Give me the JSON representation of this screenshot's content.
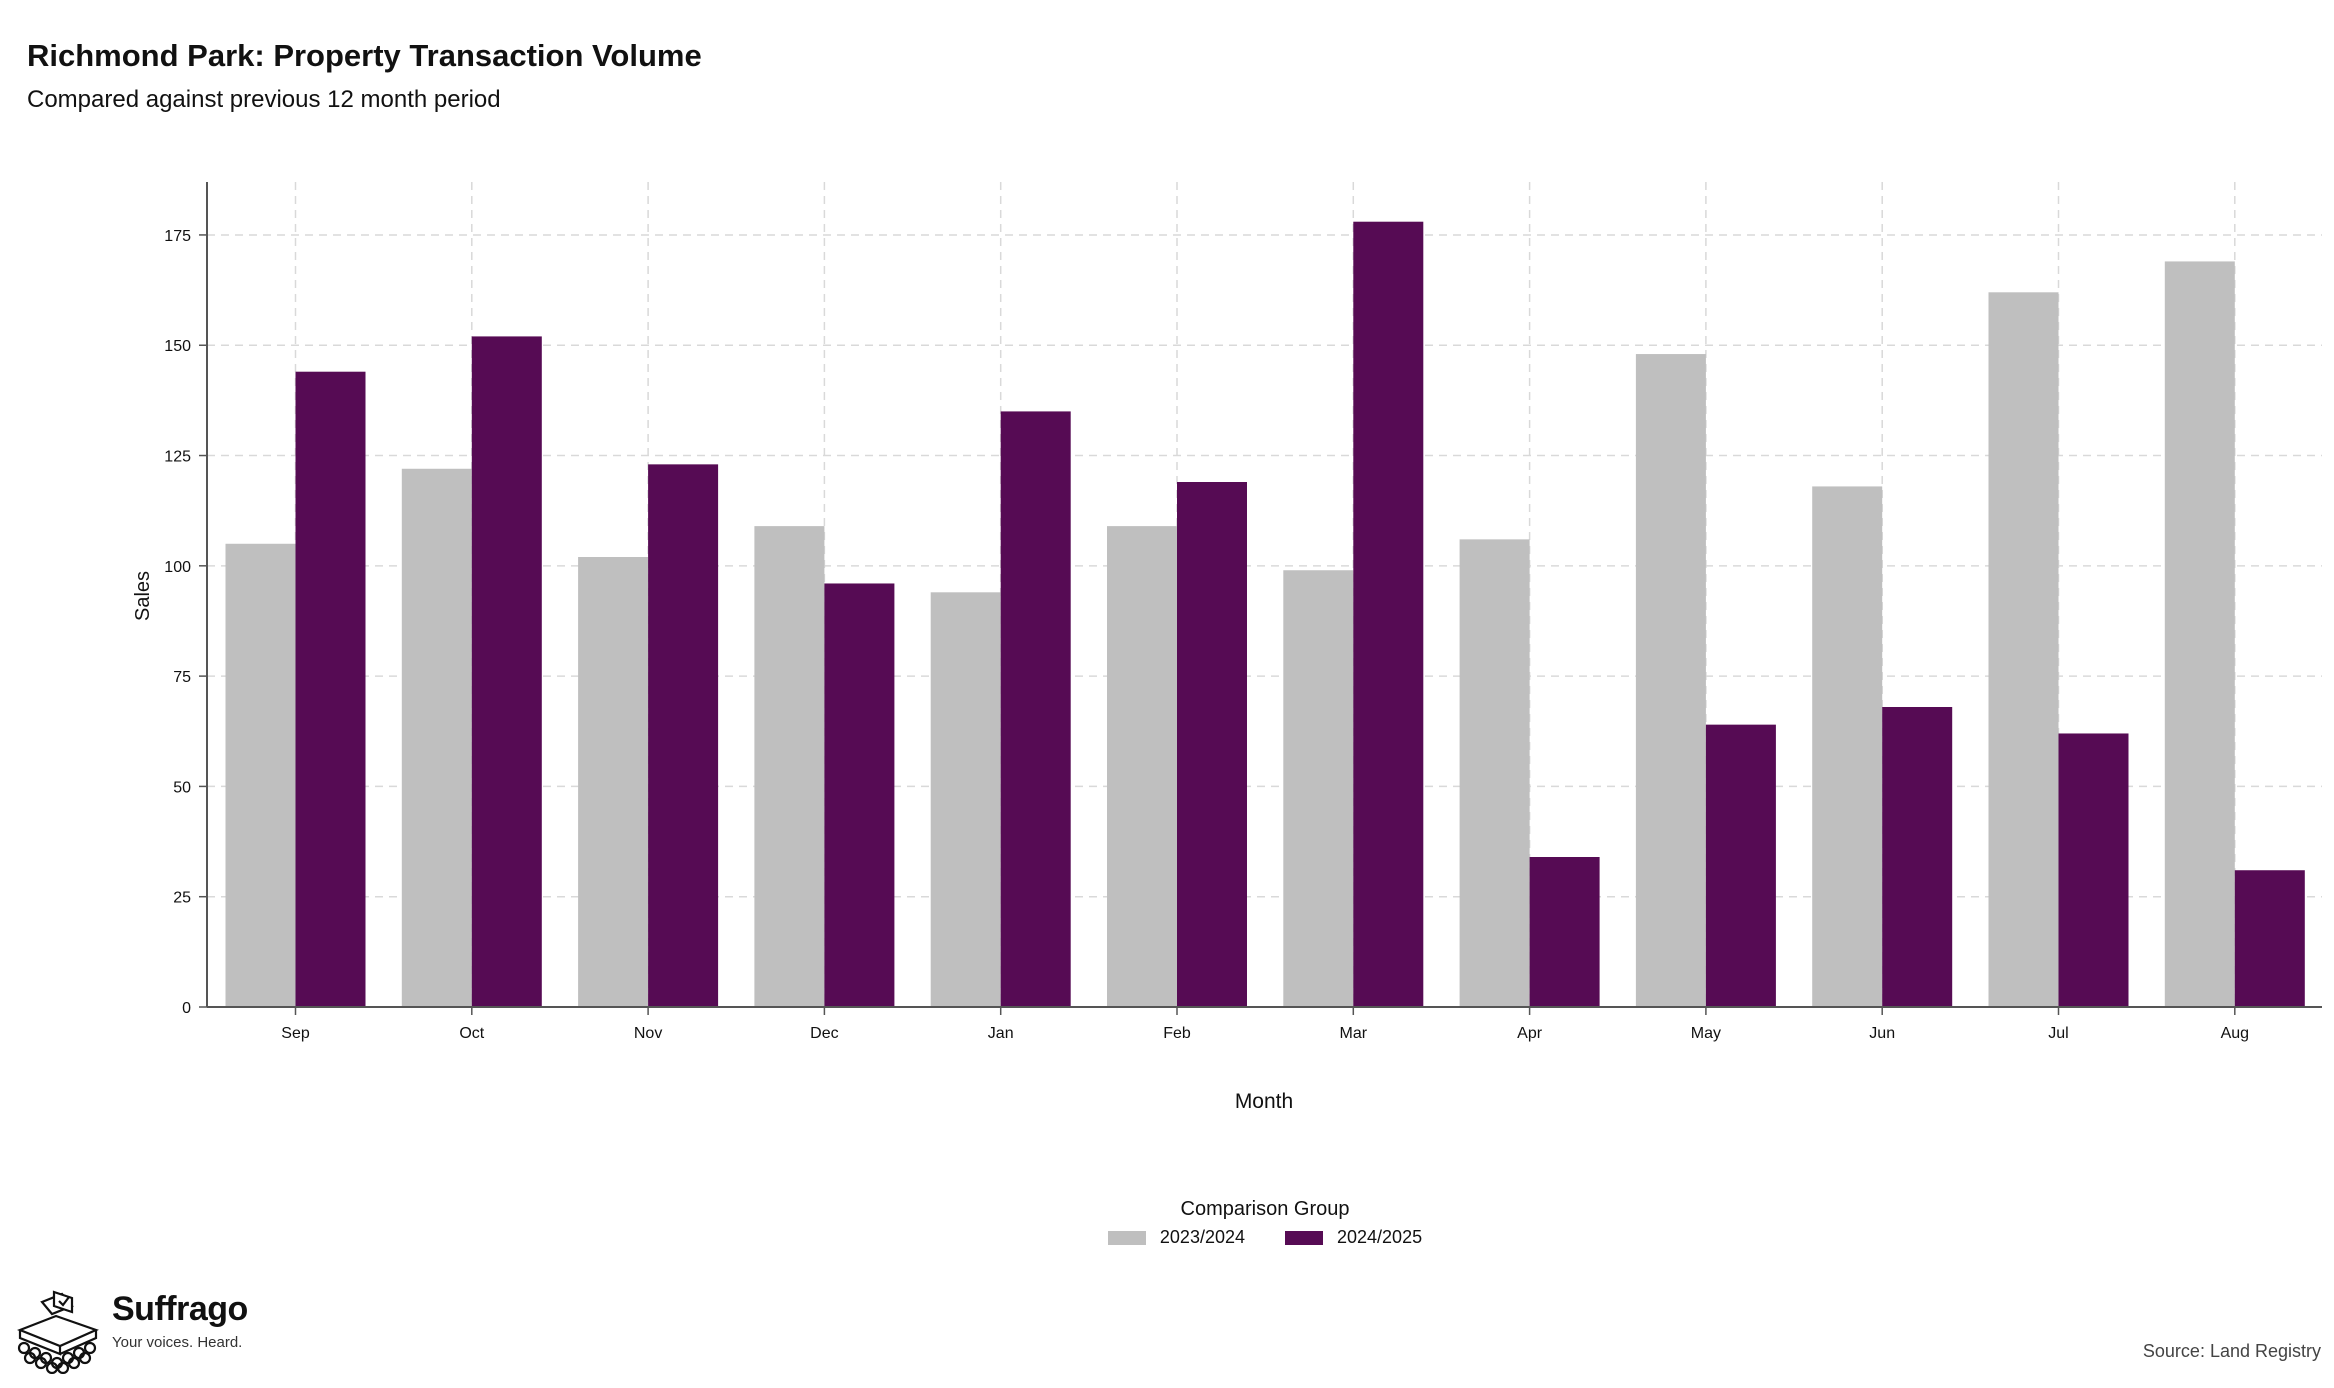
{
  "header": {
    "title": "Richmond Park: Property Transaction Volume",
    "subtitle": "Compared against previous 12 month period"
  },
  "colors": {
    "series_2023_2024": "#bfbfbf",
    "series_2024_2025": "#560b54",
    "grid": "#d9d9d9",
    "axis": "#555555"
  },
  "chart_data": {
    "type": "bar",
    "xlabel": "Month",
    "ylabel": "Sales",
    "ylim": [
      0,
      187
    ],
    "yticks": [
      0,
      25,
      50,
      75,
      100,
      125,
      150,
      175
    ],
    "grid": true,
    "legend_position": "bottom",
    "legend_title": "Comparison Group",
    "categories": [
      "Sep",
      "Oct",
      "Nov",
      "Dec",
      "Jan",
      "Feb",
      "Mar",
      "Apr",
      "May",
      "Jun",
      "Jul",
      "Aug"
    ],
    "series": [
      {
        "name": "2023/2024",
        "values": [
          105,
          122,
          102,
          109,
          94,
          109,
          99,
          106,
          148,
          118,
          162,
          169
        ]
      },
      {
        "name": "2024/2025",
        "values": [
          144,
          152,
          123,
          96,
          135,
          119,
          178,
          34,
          64,
          68,
          62,
          31
        ]
      }
    ]
  },
  "branding": {
    "name": "Suffrago",
    "tagline": "Your voices. Heard.",
    "icon": "ballot-box-icon"
  },
  "footer": {
    "source": "Source: Land Registry"
  }
}
